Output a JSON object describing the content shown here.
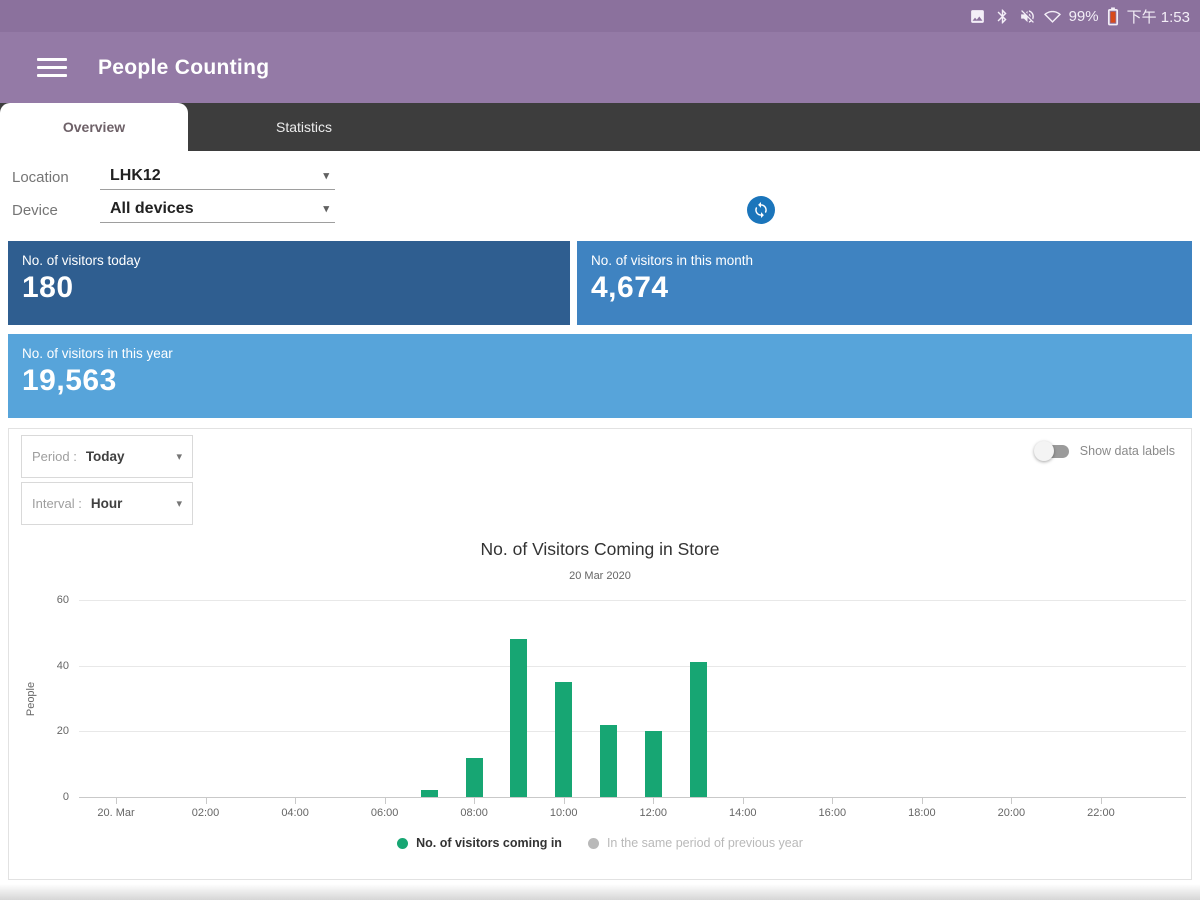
{
  "status_bar": {
    "battery_percent": "99%",
    "time": "下午 1:53",
    "icons": [
      "image-icon",
      "bluetooth-icon",
      "volume-off-icon",
      "wifi-icon",
      "battery-icon"
    ]
  },
  "app_bar": {
    "title": "People Counting",
    "menu_icon": "hamburger-menu-icon"
  },
  "tabs": [
    {
      "label": "Overview",
      "active": true
    },
    {
      "label": "Statistics",
      "active": false
    }
  ],
  "filters": {
    "location_label": "Location",
    "location_value": "LHK12",
    "device_label": "Device",
    "device_value": "All devices",
    "refresh_icon": "sync-refresh-icon"
  },
  "summary_cards": [
    {
      "label": "No. of visitors today",
      "value": "180",
      "color": "#2f5e90"
    },
    {
      "label": "No. of visitors in this month",
      "value": "4,674",
      "color": "#3f83c1"
    },
    {
      "label": "No. of visitors in this year",
      "value": "19,563",
      "color": "#57a4da"
    }
  ],
  "controls": {
    "period_label": "Period :",
    "period_value": "Today",
    "interval_label": "Interval :",
    "interval_value": "Hour",
    "toggle_label": "Show data labels",
    "toggle_on": false
  },
  "chart_data": {
    "type": "bar",
    "title": "No. of Visitors Coming in Store",
    "subtitle": "20 Mar 2020",
    "xlabel": "",
    "ylabel": "People",
    "ylim": [
      0,
      60
    ],
    "yticks": [
      0,
      20,
      40,
      60
    ],
    "grid": true,
    "legend_position": "bottom",
    "x_unit": "hour-of-day",
    "xtick_labels": [
      "20. Mar",
      "02:00",
      "04:00",
      "06:00",
      "08:00",
      "10:00",
      "12:00",
      "14:00",
      "16:00",
      "18:00",
      "20:00",
      "22:00"
    ],
    "series": [
      {
        "name": "No. of visitors coming in",
        "color": "#17a673",
        "active": true,
        "points": [
          {
            "hour": 7,
            "value": 2
          },
          {
            "hour": 8,
            "value": 12
          },
          {
            "hour": 9,
            "value": 48
          },
          {
            "hour": 10,
            "value": 35
          },
          {
            "hour": 11,
            "value": 22
          },
          {
            "hour": 12,
            "value": 20
          },
          {
            "hour": 13,
            "value": 41
          }
        ]
      },
      {
        "name": "In the same period of previous year",
        "color": "#b9b9b9",
        "active": false,
        "points": []
      }
    ]
  }
}
